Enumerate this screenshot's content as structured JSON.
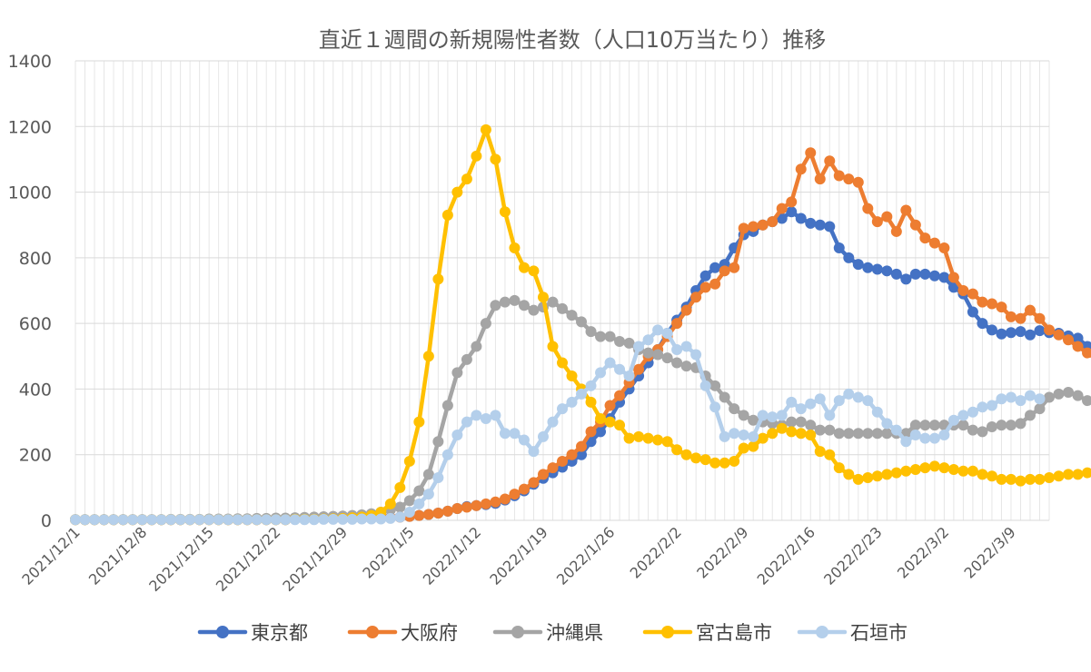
{
  "chart_data": {
    "type": "line",
    "title": "直近１週間の新規陽性者数（人口10万当たり）推移",
    "xlabel": "",
    "ylabel": "",
    "ylim": [
      0,
      1400
    ],
    "yticks": [
      0,
      200,
      400,
      600,
      800,
      1000,
      1200,
      1400
    ],
    "grid": true,
    "legend": "bottom",
    "x_start": "2021/12/1",
    "x_tick_labels": [
      "2021/12/1",
      "2021/12/8",
      "2021/12/15",
      "2021/12/22",
      "2021/12/29",
      "2022/1/5",
      "2022/1/12",
      "2022/1/19",
      "2022/1/26",
      "2022/2/2",
      "2022/2/9",
      "2022/2/16",
      "2022/2/23",
      "2022/3/2",
      "2022/3/9"
    ],
    "series": [
      {
        "name": "東京都",
        "color": "#4472C4",
        "values": [
          2,
          2,
          2,
          2,
          2,
          2,
          2,
          2,
          2,
          2,
          2,
          2,
          2,
          2,
          2,
          2,
          2,
          2,
          2,
          2,
          2,
          2,
          2,
          3,
          3,
          3,
          4,
          4,
          4,
          5,
          5,
          6,
          6,
          8,
          10,
          12,
          15,
          18,
          22,
          28,
          36,
          42,
          45,
          48,
          52,
          62,
          75,
          90,
          110,
          128,
          145,
          162,
          180,
          200,
          240,
          270,
          310,
          360,
          400,
          440,
          480,
          520,
          570,
          610,
          650,
          700,
          745,
          770,
          780,
          830,
          870,
          880,
          900,
          910,
          920,
          940,
          920,
          905,
          900,
          895,
          830,
          800,
          780,
          770,
          765,
          760,
          750,
          735,
          750,
          750,
          745,
          740,
          710,
          690,
          635,
          600,
          580,
          568,
          572,
          575,
          565,
          578,
          572,
          570,
          562,
          555,
          530,
          510,
          490,
          475
        ]
      },
      {
        "name": "大阪府",
        "color": "#ED7D31",
        "values": [
          2,
          2,
          2,
          2,
          2,
          2,
          2,
          2,
          2,
          2,
          2,
          2,
          2,
          2,
          2,
          2,
          2,
          2,
          2,
          2,
          2,
          2,
          2,
          3,
          3,
          3,
          4,
          4,
          4,
          5,
          5,
          6,
          6,
          8,
          10,
          12,
          15,
          18,
          22,
          28,
          36,
          40,
          45,
          50,
          56,
          65,
          80,
          95,
          115,
          140,
          160,
          180,
          200,
          225,
          270,
          300,
          350,
          380,
          420,
          460,
          500,
          520,
          560,
          600,
          640,
          680,
          710,
          720,
          760,
          770,
          890,
          895,
          900,
          910,
          950,
          970,
          1070,
          1120,
          1040,
          1095,
          1050,
          1040,
          1030,
          950,
          910,
          925,
          880,
          945,
          900,
          860,
          845,
          830,
          740,
          700,
          690,
          665,
          660,
          650,
          620,
          615,
          640,
          615,
          580,
          565,
          550,
          530,
          510,
          490,
          478,
          465
        ]
      },
      {
        "name": "沖縄県",
        "color": "#A5A5A5",
        "values": [
          2,
          2,
          2,
          2,
          2,
          2,
          2,
          2,
          2,
          2,
          3,
          3,
          3,
          3,
          4,
          4,
          4,
          5,
          5,
          6,
          6,
          7,
          7,
          8,
          9,
          10,
          11,
          12,
          13,
          15,
          17,
          20,
          25,
          32,
          40,
          60,
          90,
          140,
          240,
          350,
          450,
          490,
          530,
          600,
          655,
          665,
          670,
          655,
          640,
          650,
          665,
          645,
          625,
          605,
          575,
          560,
          560,
          545,
          540,
          520,
          510,
          505,
          495,
          480,
          470,
          465,
          440,
          410,
          375,
          340,
          320,
          305,
          300,
          295,
          290,
          300,
          300,
          290,
          275,
          275,
          265,
          265,
          265,
          265,
          265,
          265,
          265,
          265,
          290,
          290,
          290,
          290,
          290,
          290,
          275,
          270,
          285,
          290,
          290,
          295,
          320,
          340,
          375,
          385,
          390,
          380,
          365,
          350,
          340,
          325
        ]
      },
      {
        "name": "宮古島市",
        "color": "#FFC000",
        "values": [
          2,
          2,
          2,
          2,
          2,
          2,
          2,
          2,
          2,
          2,
          2,
          2,
          2,
          2,
          2,
          2,
          2,
          2,
          2,
          2,
          2,
          2,
          2,
          3,
          3,
          3,
          4,
          5,
          6,
          8,
          10,
          15,
          25,
          50,
          100,
          180,
          300,
          500,
          735,
          930,
          1000,
          1040,
          1110,
          1190,
          1100,
          940,
          830,
          770,
          760,
          680,
          530,
          480,
          440,
          400,
          360,
          310,
          300,
          290,
          250,
          255,
          250,
          245,
          240,
          215,
          200,
          190,
          185,
          175,
          175,
          180,
          220,
          225,
          250,
          265,
          280,
          270,
          265,
          260,
          210,
          200,
          160,
          140,
          125,
          130,
          135,
          140,
          145,
          150,
          155,
          160,
          165,
          160,
          155,
          150,
          150,
          140,
          135,
          125,
          125,
          120,
          125,
          125,
          130,
          135,
          140,
          140,
          145,
          145
        ]
      },
      {
        "name": "石垣市",
        "color": "#B4CFEB",
        "values": [
          2,
          2,
          2,
          2,
          2,
          2,
          2,
          2,
          2,
          2,
          2,
          2,
          2,
          2,
          2,
          2,
          2,
          2,
          2,
          2,
          2,
          2,
          2,
          2,
          2,
          2,
          3,
          3,
          3,
          3,
          4,
          4,
          4,
          6,
          10,
          25,
          50,
          80,
          130,
          200,
          260,
          300,
          320,
          310,
          320,
          265,
          265,
          245,
          210,
          255,
          300,
          340,
          360,
          385,
          410,
          450,
          480,
          460,
          440,
          530,
          550,
          580,
          570,
          520,
          530,
          505,
          410,
          345,
          255,
          265,
          260,
          255,
          320,
          315,
          320,
          360,
          340,
          355,
          370,
          320,
          365,
          385,
          375,
          365,
          330,
          295,
          275,
          240,
          260,
          250,
          250,
          260,
          305,
          320,
          330,
          345,
          350,
          370,
          375,
          365,
          380,
          370
        ]
      }
    ]
  }
}
